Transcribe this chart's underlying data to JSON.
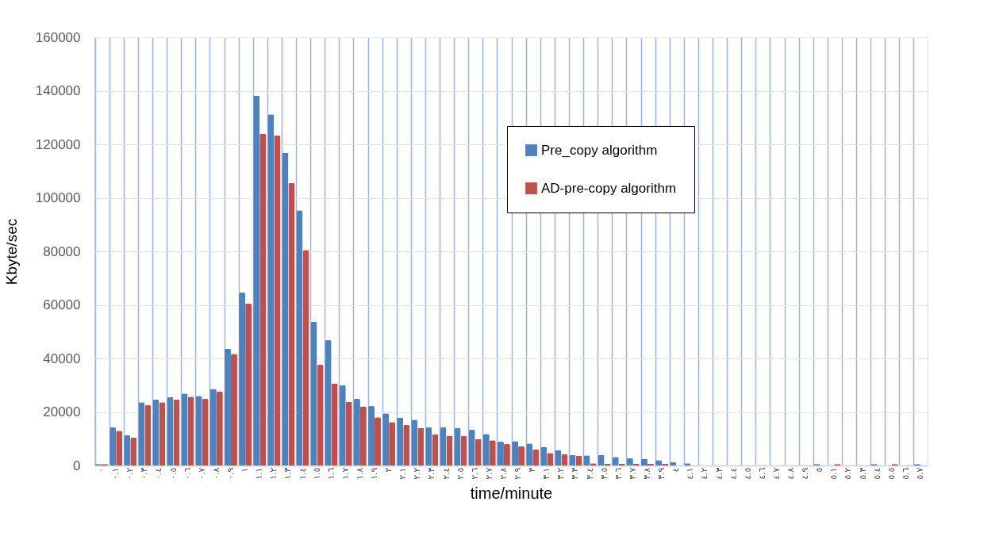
{
  "chart_data": {
    "type": "bar",
    "xlabel": "time/minute",
    "ylabel": "Kbyte/sec",
    "categories": [
      "٠",
      "٠.١",
      "٠.٢",
      "٠.٣",
      "٠.٤",
      "٠.٥",
      "٠.٦",
      "٠.٧",
      "٠.٨",
      "٠.٩",
      "١",
      "١.١",
      "١.٢",
      "١.٣",
      "١.٤",
      "١.٥",
      "١.٦",
      "١.٧",
      "١.٨",
      "١.٩",
      "٢",
      "٢.١",
      "٢.٢",
      "٢.٣",
      "٢.٤",
      "٢.٥",
      "٢.٦",
      "٢.٧",
      "٢.٨",
      "٢.٩",
      "٣",
      "٣.١",
      "٣.٢",
      "٣.٣",
      "٣.٤",
      "٣.٥",
      "٣.٦",
      "٣.٧",
      "٣.٨",
      "٣.٩",
      "٤",
      "٤.١",
      "٤.٢",
      "٤.٣",
      "٤.٤",
      "٤.٥",
      "٤.٦",
      "٤.٧",
      "٤.٨",
      "٤.٩",
      "٥",
      "٥.١",
      "٥.٢",
      "٥.٣",
      "٥.٤",
      "٥.٥",
      "٥.٦",
      "٥.٧"
    ],
    "series": [
      {
        "name": "Pre_copy algorithm",
        "color": "#4f81bd",
        "values": [
          500,
          14200,
          11300,
          23600,
          24700,
          25500,
          26900,
          26000,
          28600,
          43600,
          64600,
          138200,
          131200,
          116800,
          95300,
          53700,
          46800,
          30000,
          24900,
          22200,
          19500,
          17900,
          17100,
          14300,
          14300,
          14000,
          13400,
          11800,
          8900,
          9100,
          8200,
          7000,
          5800,
          3900,
          3800,
          3900,
          3200,
          2700,
          2500,
          2000,
          1200,
          800,
          0,
          0,
          0,
          0,
          0,
          0,
          0,
          0,
          500,
          0,
          0,
          0,
          500,
          0,
          0,
          500
        ]
      },
      {
        "name": "AD-pre-copy algorithm",
        "color": "#c0504d",
        "values": [
          500,
          13000,
          10400,
          22500,
          23600,
          24600,
          25700,
          24900,
          27600,
          41700,
          60500,
          124000,
          123300,
          105600,
          80500,
          37600,
          30700,
          23800,
          22100,
          18000,
          16200,
          15200,
          14100,
          11700,
          11100,
          11000,
          9900,
          9400,
          8000,
          7200,
          6000,
          4700,
          4200,
          3600,
          800,
          700,
          700,
          700,
          700,
          700,
          0,
          0,
          0,
          0,
          0,
          0,
          0,
          0,
          0,
          0,
          0,
          500,
          0,
          0,
          0,
          500,
          0,
          0
        ]
      }
    ],
    "ylim": [
      0,
      160000
    ],
    "yticks": [
      0,
      20000,
      40000,
      60000,
      80000,
      100000,
      120000,
      140000,
      160000
    ],
    "grid": true,
    "legend": "top right"
  }
}
